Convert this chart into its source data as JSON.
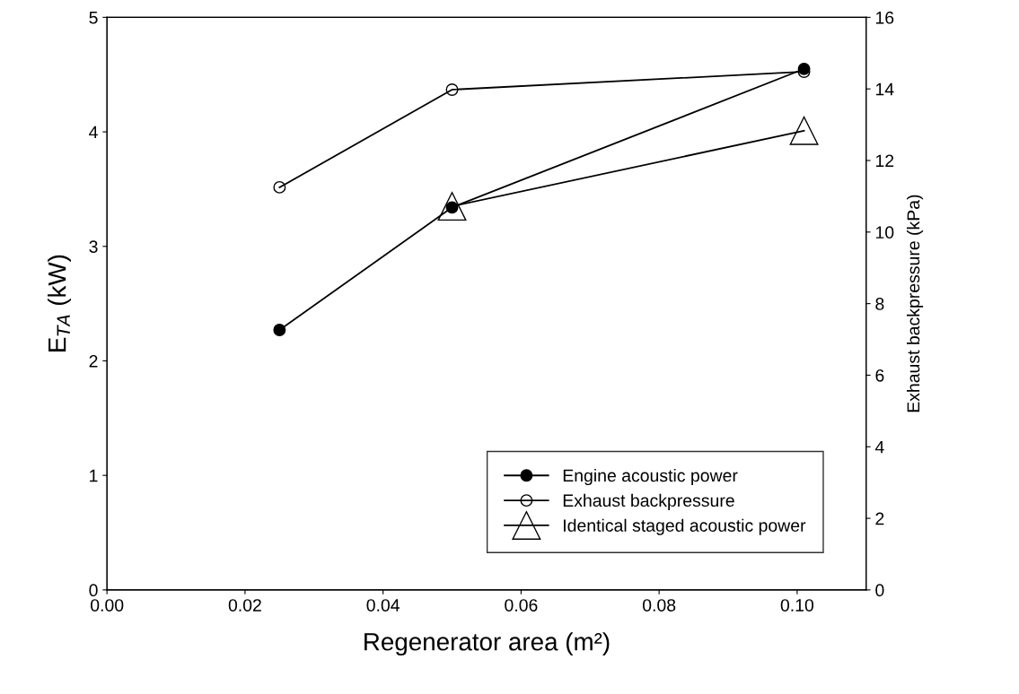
{
  "chart_data": {
    "type": "line",
    "xlabel": "Regenerator area (m²)",
    "ylabel": "E$_{TA}$ (kW)",
    "y2label": "Exhaust backpressure (kPa)",
    "xlim": [
      0,
      0.11
    ],
    "xticks": [
      {
        "value": 0,
        "label": "0.00"
      },
      {
        "value": 0.02,
        "label": "0.02"
      },
      {
        "value": 0.04,
        "label": "0.04"
      },
      {
        "value": 0.06,
        "label": "0.06"
      },
      {
        "value": 0.08,
        "label": "0.08"
      },
      {
        "value": 0.1,
        "label": "0.10"
      }
    ],
    "ylim": [
      0,
      5
    ],
    "yticks": [
      0,
      1,
      2,
      3,
      4,
      5
    ],
    "y2lim": [
      0,
      16
    ],
    "y2ticks": [
      0,
      2,
      4,
      6,
      8,
      10,
      12,
      14,
      16
    ],
    "grid": false,
    "legend": "bottom right",
    "series": [
      {
        "name": "Engine acoustic power",
        "color": "#000000",
        "marker": "circle",
        "x": [
          0.025,
          0.05,
          0.101
        ],
        "values": [
          2.27,
          3.34,
          4.55
        ]
      },
      {
        "name": "Exhaust backpressure",
        "color": "#000000",
        "marker": "circle",
        "axis": "y2",
        "x": [
          0.025,
          0.05,
          0.101
        ],
        "values": [
          11.25,
          13.98,
          14.48
        ]
      },
      {
        "name": "Identical staged acoustic power",
        "color": "#000000",
        "marker": "triangle",
        "x": [
          0.05,
          0.101
        ],
        "values": [
          3.35,
          4.01
        ]
      }
    ]
  }
}
